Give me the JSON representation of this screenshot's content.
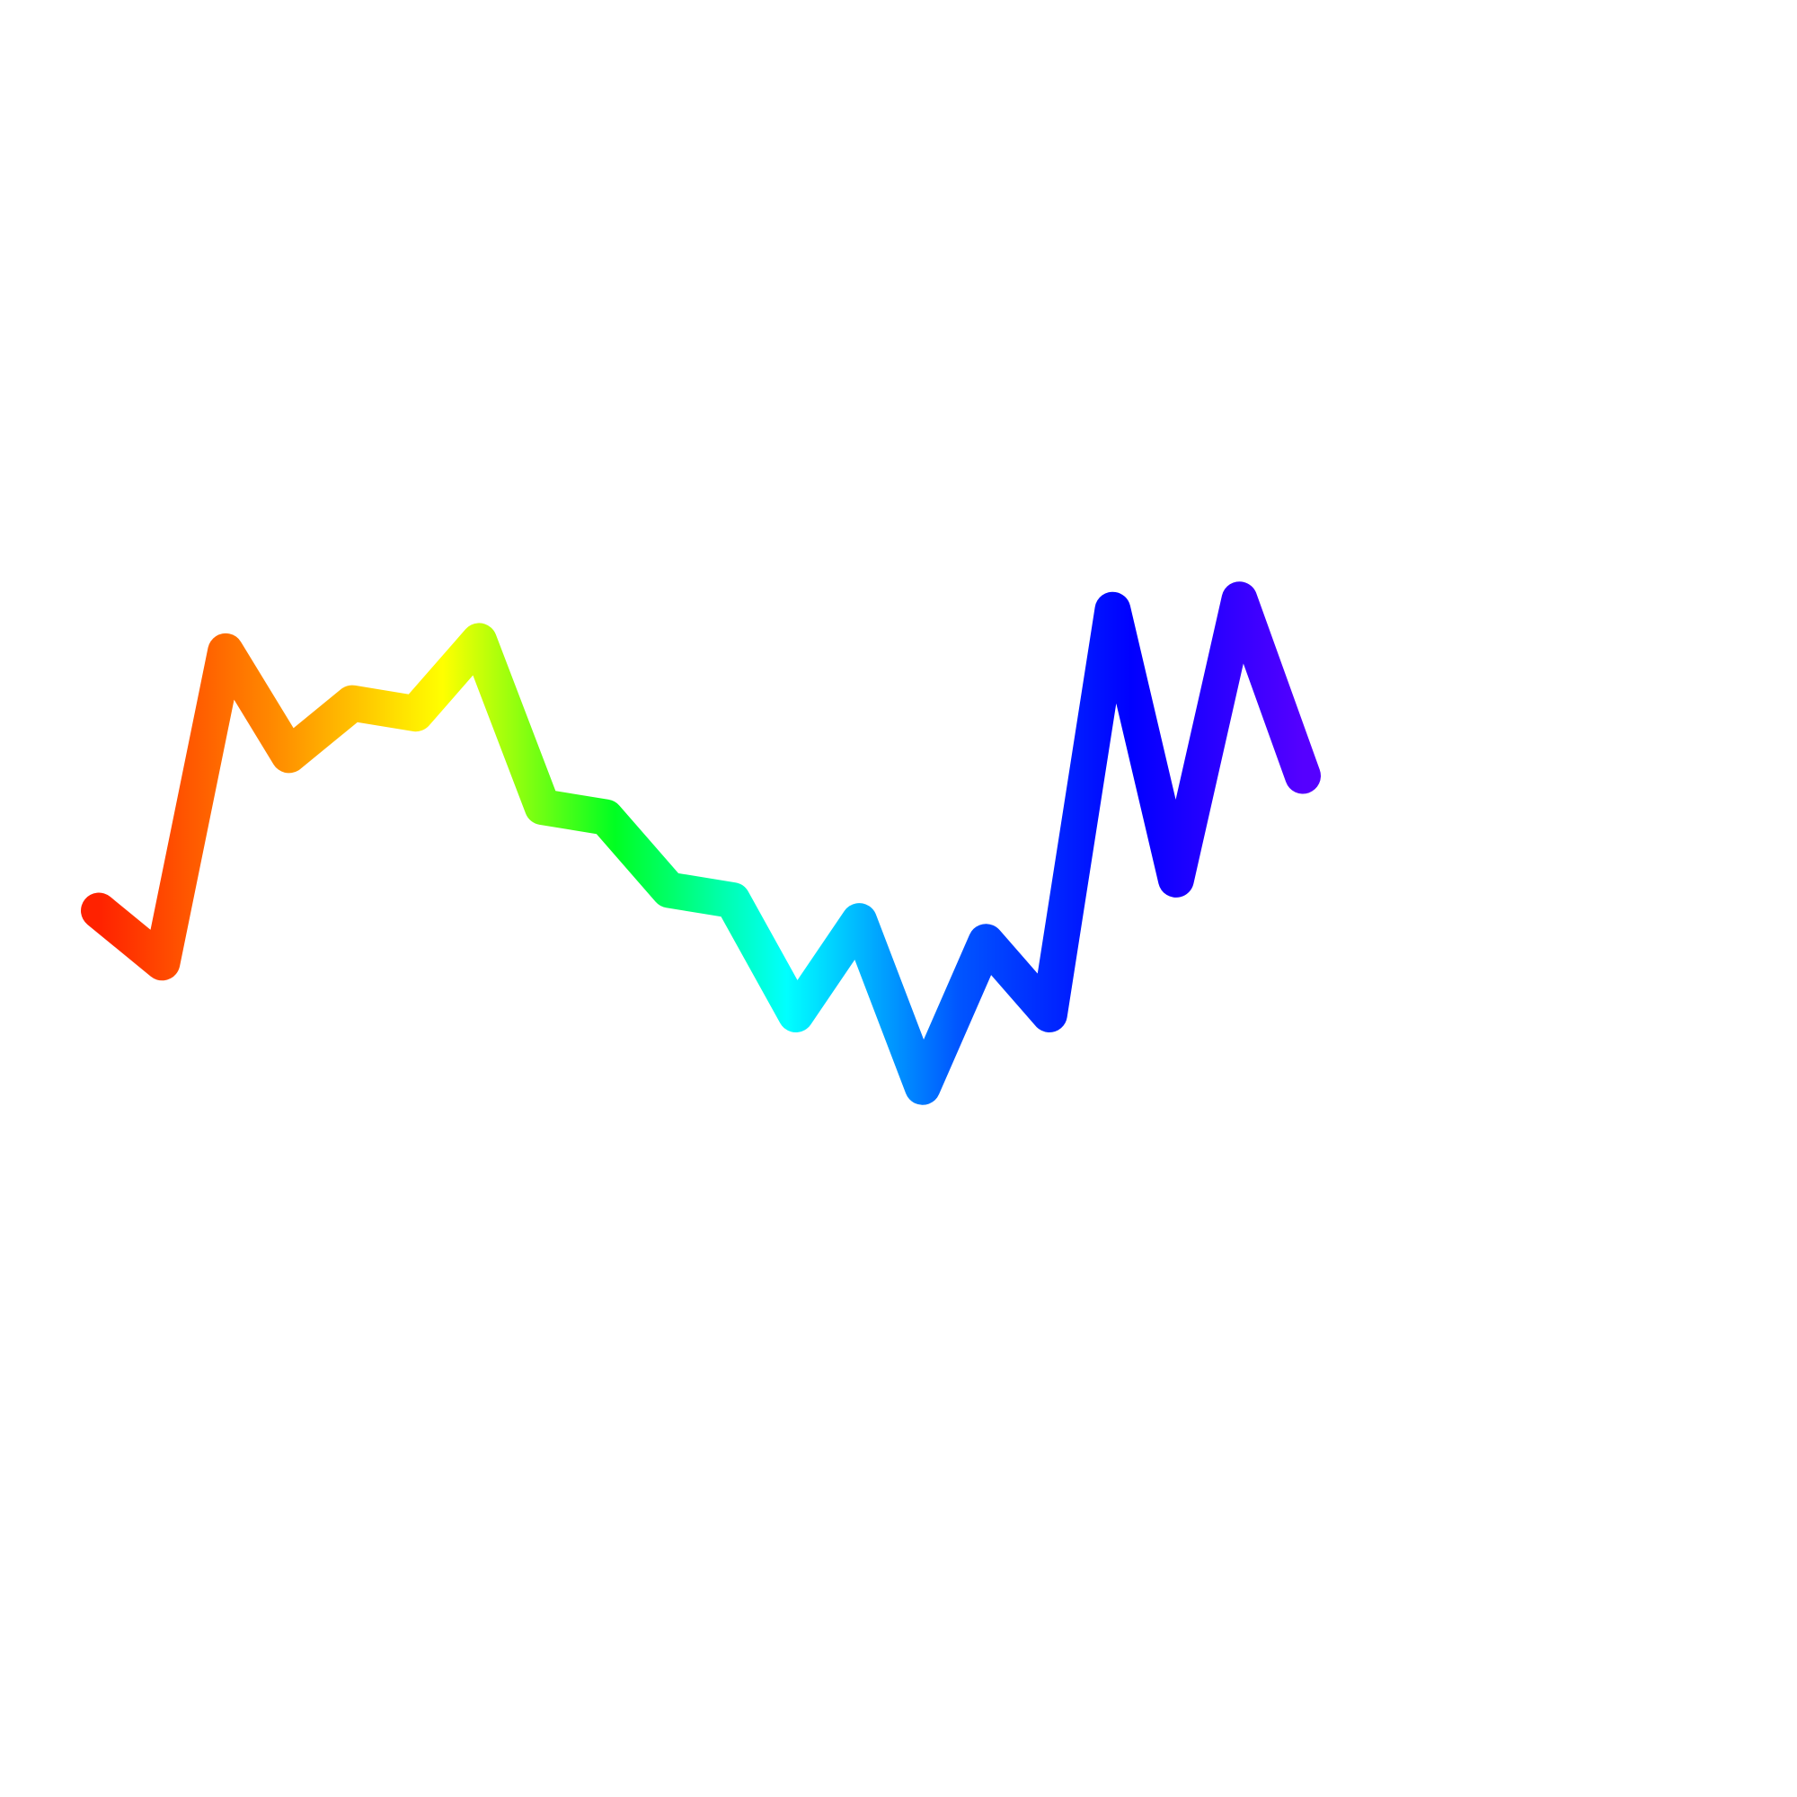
{
  "chart_data": {
    "type": "line",
    "title": "",
    "xlabel": "",
    "ylabel": "",
    "grid": false,
    "legend": "none",
    "axes_visible": false,
    "line_style": "rainbow-gradient",
    "gradient_colors": [
      "#ff2200",
      "#ff8800",
      "#ffff00",
      "#00ff22",
      "#00ffff",
      "#0055ff",
      "#0000ff",
      "#5500ff"
    ],
    "xlim": [
      0,
      20
    ],
    "ylim": [
      0,
      11
    ],
    "series": [
      {
        "x": [
          0,
          1,
          2,
          3,
          4,
          5,
          6,
          7,
          8,
          9,
          10,
          11,
          12,
          13,
          14,
          15,
          16,
          17,
          18,
          19
        ],
        "values": [
          4.3,
          3.8,
          6.8,
          5.8,
          6.3,
          6.2,
          6.9,
          5.3,
          5.2,
          4.5,
          4.4,
          3.3,
          4.2,
          2.6,
          4.0,
          3.3,
          7.2,
          4.6,
          7.3,
          5.6
        ]
      }
    ]
  }
}
